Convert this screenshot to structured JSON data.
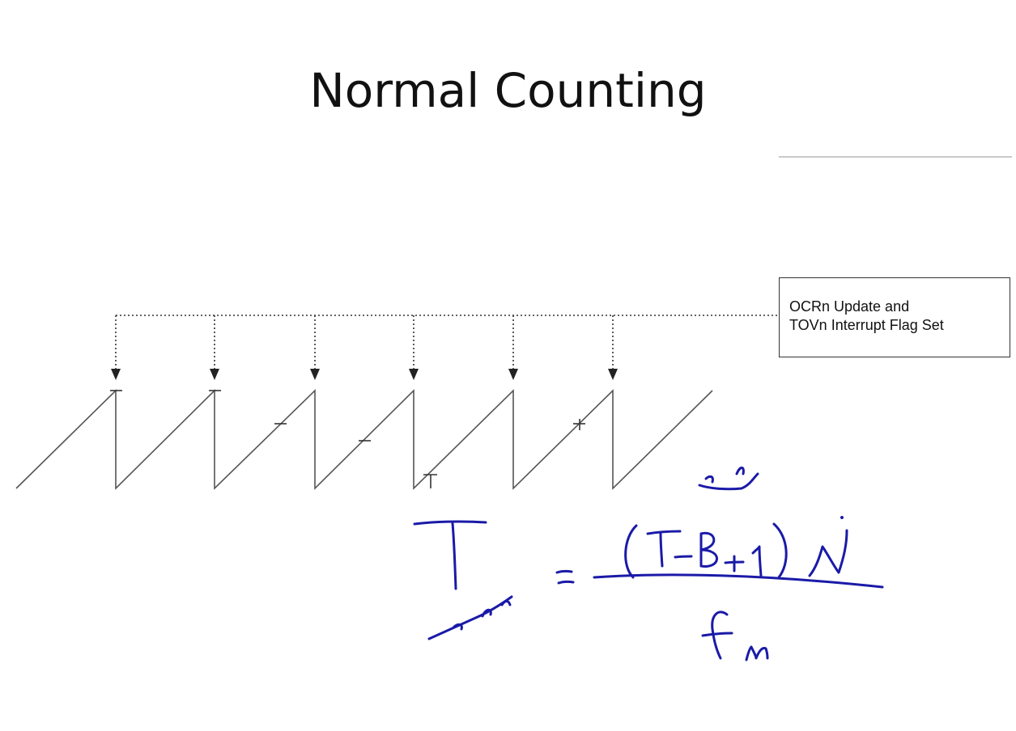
{
  "slide": {
    "title": "Normal Counting"
  },
  "callout": {
    "lines": [
      "OCRn Update and",
      "TOVn Interrupt Flag Set"
    ]
  },
  "diagram": {
    "type": "sawtooth-timing",
    "overflow_events": 6,
    "line_color": "#555555",
    "arrow_color": "#222222",
    "ink_color": "#1a1aa8"
  }
}
